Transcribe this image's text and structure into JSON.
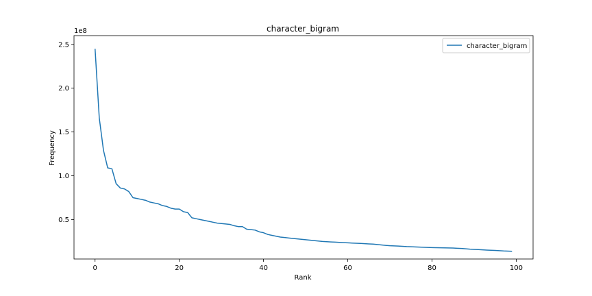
{
  "chart_data": {
    "type": "line",
    "title": "character_bigram",
    "xlabel": "Rank",
    "ylabel": "Frequency",
    "y_offset_label": "1e8",
    "xlim": [
      -5,
      104
    ],
    "ylim": [
      0.05,
      2.6
    ],
    "x_ticks": [
      0,
      20,
      40,
      60,
      80,
      100
    ],
    "x_tick_labels": [
      "0",
      "20",
      "40",
      "60",
      "80",
      "100"
    ],
    "y_ticks": [
      0.5,
      1.0,
      1.5,
      2.0,
      2.5
    ],
    "y_tick_labels": [
      "0.5",
      "1.0",
      "1.5",
      "2.0",
      "2.5"
    ],
    "legend": {
      "placement": "top-right",
      "entries": [
        "character_bigram"
      ]
    },
    "grid": false,
    "series": [
      {
        "name": "character_bigram",
        "color": "#1f77b4",
        "x": [
          0,
          1,
          2,
          3,
          4,
          5,
          6,
          7,
          8,
          9,
          10,
          11,
          12,
          13,
          14,
          15,
          16,
          17,
          18,
          19,
          20,
          21,
          22,
          23,
          24,
          25,
          26,
          27,
          28,
          29,
          30,
          31,
          32,
          33,
          34,
          35,
          36,
          37,
          38,
          39,
          40,
          41,
          42,
          43,
          44,
          45,
          46,
          47,
          48,
          49,
          50,
          51,
          52,
          53,
          54,
          55,
          56,
          57,
          58,
          59,
          60,
          61,
          62,
          63,
          64,
          65,
          66,
          67,
          68,
          69,
          70,
          71,
          72,
          73,
          74,
          75,
          76,
          77,
          78,
          79,
          80,
          81,
          82,
          83,
          84,
          85,
          86,
          87,
          88,
          89,
          90,
          91,
          92,
          93,
          94,
          95,
          96,
          97,
          98,
          99
        ],
        "values": [
          2.45,
          1.66,
          1.29,
          1.09,
          1.08,
          0.91,
          0.86,
          0.85,
          0.82,
          0.75,
          0.74,
          0.73,
          0.72,
          0.7,
          0.69,
          0.68,
          0.66,
          0.65,
          0.63,
          0.62,
          0.62,
          0.59,
          0.58,
          0.52,
          0.51,
          0.5,
          0.49,
          0.48,
          0.47,
          0.46,
          0.455,
          0.45,
          0.445,
          0.43,
          0.42,
          0.42,
          0.39,
          0.385,
          0.38,
          0.36,
          0.35,
          0.33,
          0.32,
          0.31,
          0.3,
          0.295,
          0.29,
          0.285,
          0.28,
          0.275,
          0.27,
          0.265,
          0.26,
          0.255,
          0.25,
          0.248,
          0.245,
          0.243,
          0.24,
          0.237,
          0.235,
          0.232,
          0.23,
          0.228,
          0.225,
          0.222,
          0.22,
          0.215,
          0.21,
          0.205,
          0.202,
          0.2,
          0.198,
          0.195,
          0.192,
          0.19,
          0.188,
          0.186,
          0.184,
          0.182,
          0.18,
          0.179,
          0.178,
          0.177,
          0.176,
          0.175,
          0.172,
          0.17,
          0.166,
          0.162,
          0.16,
          0.158,
          0.155,
          0.152,
          0.15,
          0.148,
          0.145,
          0.142,
          0.14,
          0.138
        ]
      }
    ]
  }
}
